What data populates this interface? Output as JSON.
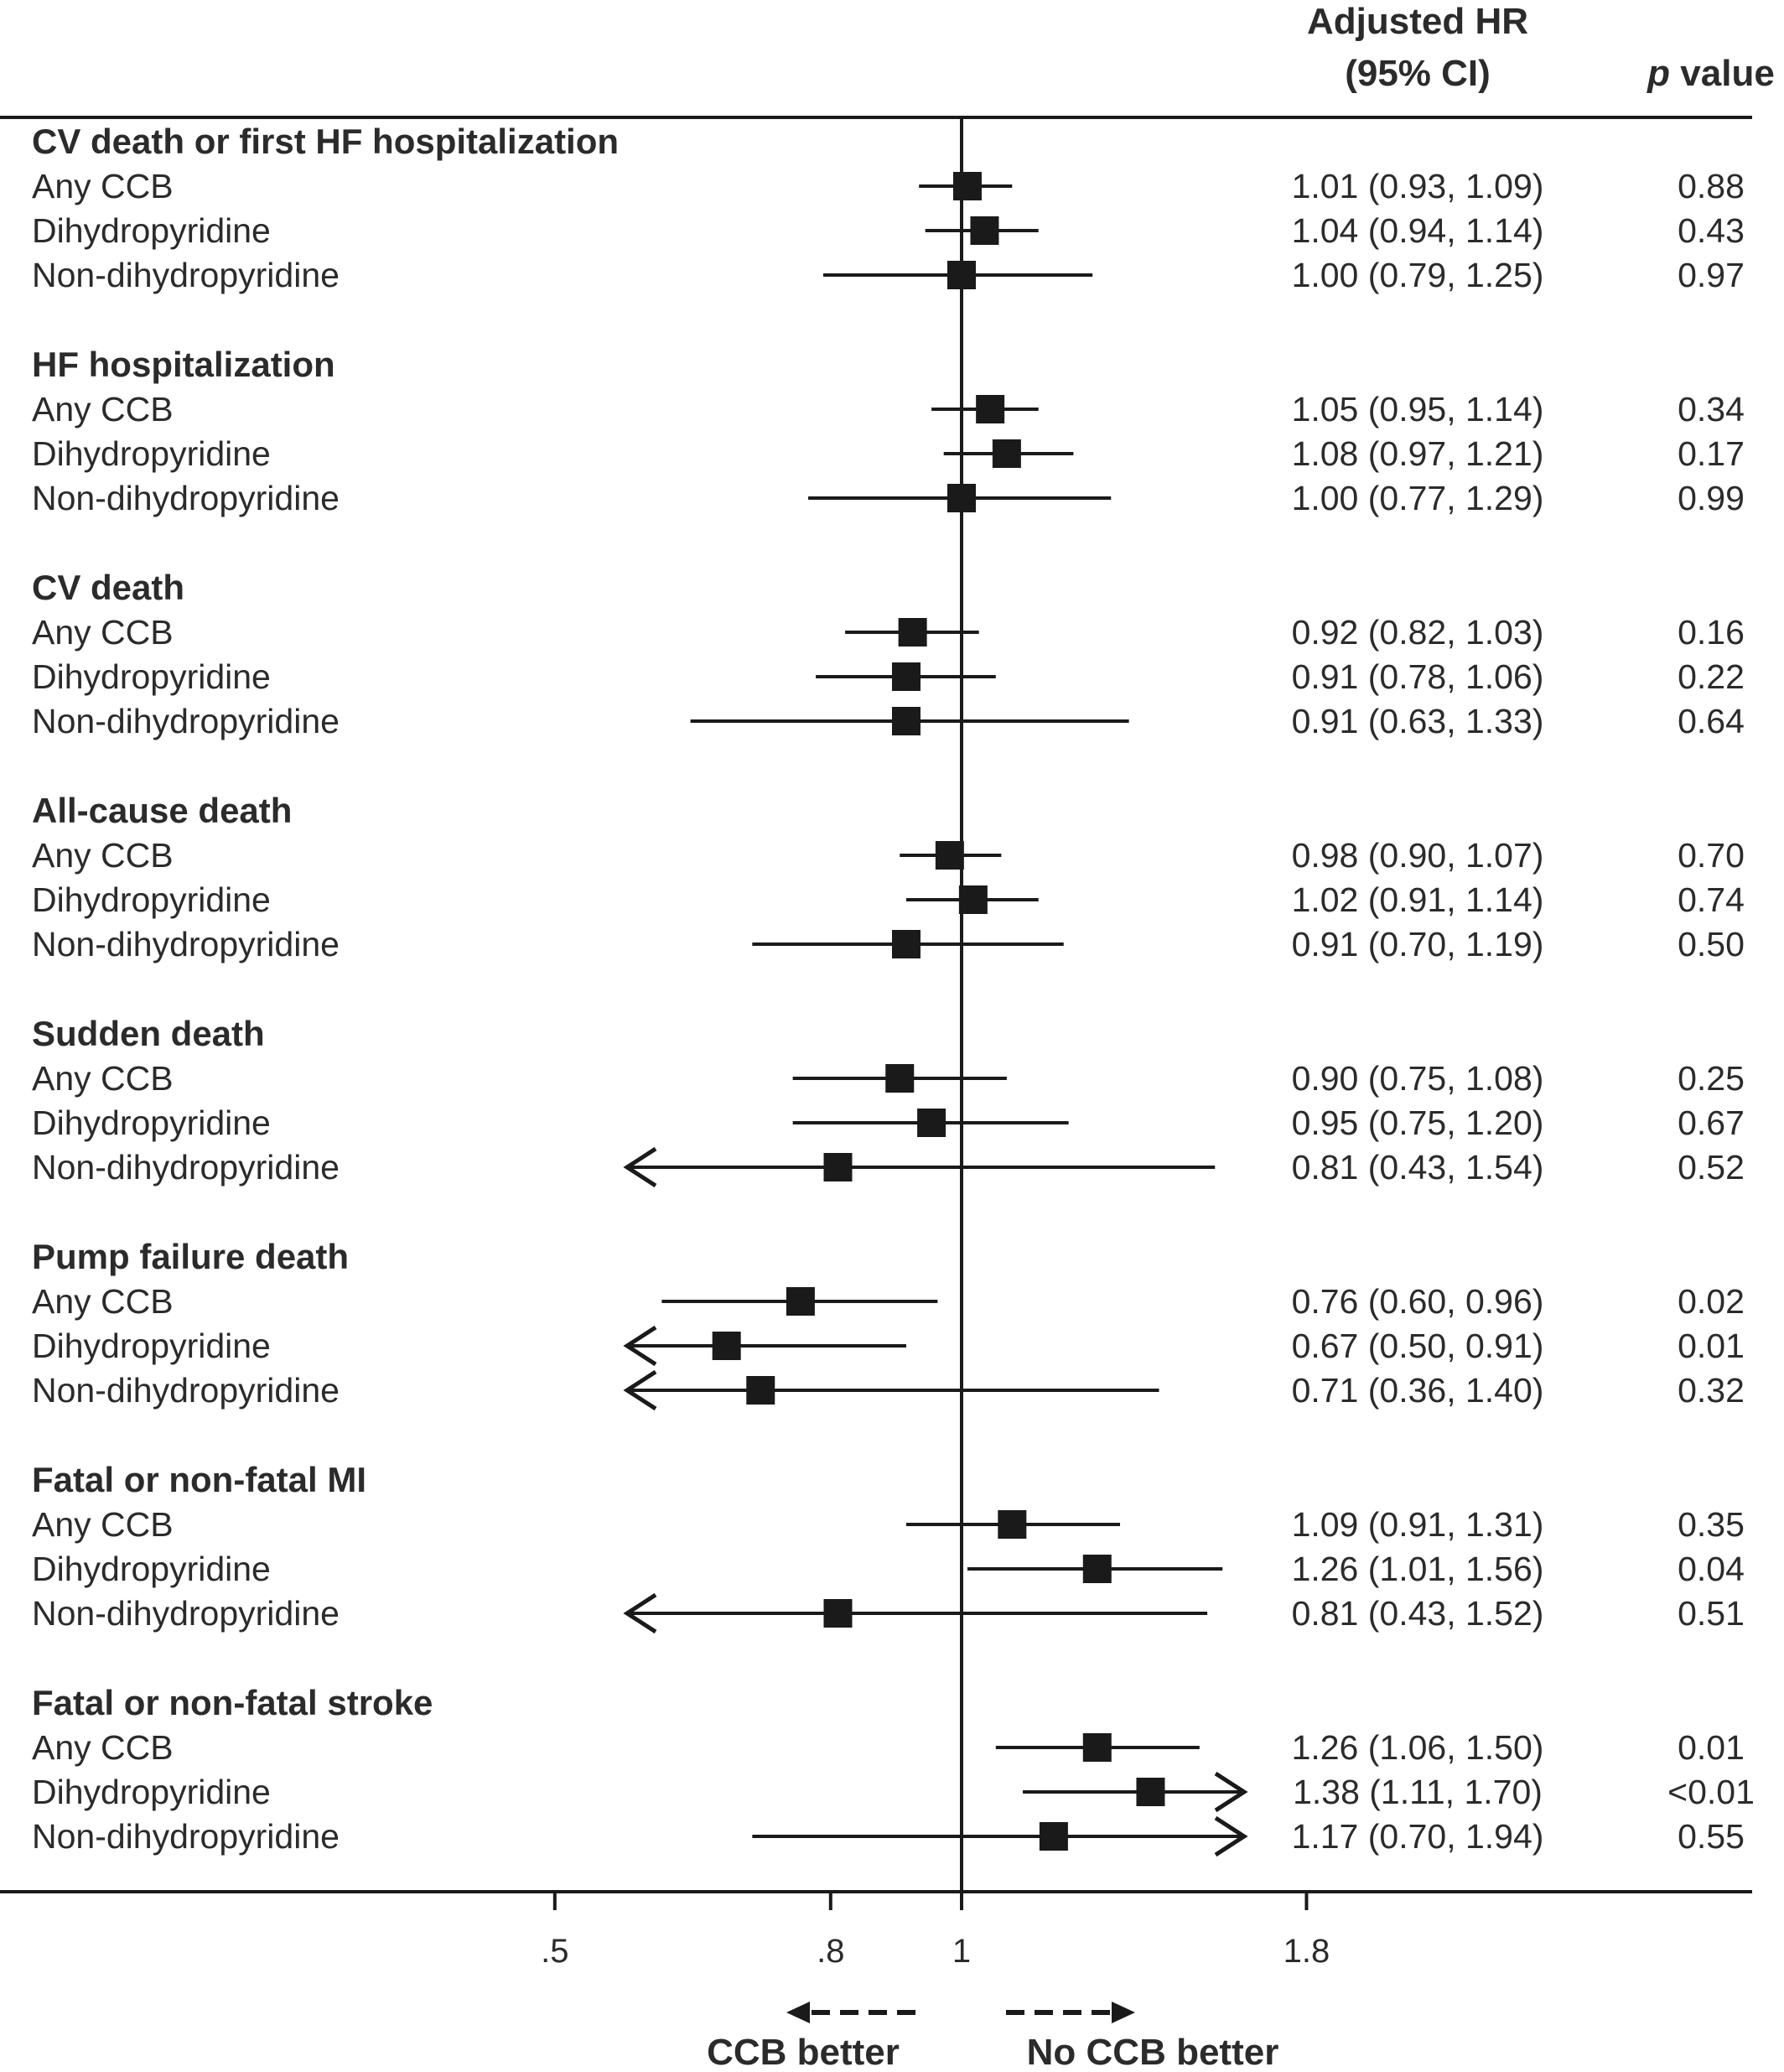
{
  "header": {
    "hr_line1": "Adjusted HR",
    "hr_line2": "(95% CI)",
    "p_italic": "p",
    "p_rest": " value"
  },
  "annotations": {
    "left": "CCB better",
    "right": "No CCB better"
  },
  "colors": {
    "ink": "#1a1a1a",
    "text": "#2b2b2b",
    "background": "#ffffff"
  },
  "chart_data": {
    "type": "forest",
    "title": "",
    "xlabel": "",
    "x_scale": "log",
    "reference_line": 1,
    "xlim": [
      0.5,
      1.8
    ],
    "xticks": [
      0.5,
      0.8,
      1,
      1.8
    ],
    "xtick_labels": [
      ".5",
      ".8",
      "1",
      "1.8"
    ],
    "groups": [
      {
        "name": "CV death or first HF hospitalization",
        "rows": [
          {
            "label": "Any CCB",
            "hr": 1.01,
            "lo": 0.93,
            "hi": 1.09,
            "ci_text": "1.01 (0.93, 1.09)",
            "p": "0.88"
          },
          {
            "label": "Dihydropyridine",
            "hr": 1.04,
            "lo": 0.94,
            "hi": 1.14,
            "ci_text": "1.04 (0.94, 1.14)",
            "p": "0.43"
          },
          {
            "label": "Non-dihydropyridine",
            "hr": 1.0,
            "lo": 0.79,
            "hi": 1.25,
            "ci_text": "1.00 (0.79, 1.25)",
            "p": "0.97"
          }
        ]
      },
      {
        "name": "HF hospitalization",
        "rows": [
          {
            "label": "Any CCB",
            "hr": 1.05,
            "lo": 0.95,
            "hi": 1.14,
            "ci_text": "1.05 (0.95, 1.14)",
            "p": "0.34"
          },
          {
            "label": "Dihydropyridine",
            "hr": 1.08,
            "lo": 0.97,
            "hi": 1.21,
            "ci_text": "1.08 (0.97, 1.21)",
            "p": "0.17"
          },
          {
            "label": "Non-dihydropyridine",
            "hr": 1.0,
            "lo": 0.77,
            "hi": 1.29,
            "ci_text": "1.00 (0.77, 1.29)",
            "p": "0.99"
          }
        ]
      },
      {
        "name": "CV death",
        "rows": [
          {
            "label": "Any CCB",
            "hr": 0.92,
            "lo": 0.82,
            "hi": 1.03,
            "ci_text": "0.92 (0.82, 1.03)",
            "p": "0.16"
          },
          {
            "label": "Dihydropyridine",
            "hr": 0.91,
            "lo": 0.78,
            "hi": 1.06,
            "ci_text": "0.91 (0.78, 1.06)",
            "p": "0.22"
          },
          {
            "label": "Non-dihydropyridine",
            "hr": 0.91,
            "lo": 0.63,
            "hi": 1.33,
            "ci_text": "0.91 (0.63, 1.33)",
            "p": "0.64"
          }
        ]
      },
      {
        "name": "All-cause death",
        "rows": [
          {
            "label": "Any CCB",
            "hr": 0.98,
            "lo": 0.9,
            "hi": 1.07,
            "ci_text": "0.98 (0.90, 1.07)",
            "p": "0.70"
          },
          {
            "label": "Dihydropyridine",
            "hr": 1.02,
            "lo": 0.91,
            "hi": 1.14,
            "ci_text": "1.02 (0.91, 1.14)",
            "p": "0.74"
          },
          {
            "label": "Non-dihydropyridine",
            "hr": 0.91,
            "lo": 0.7,
            "hi": 1.19,
            "ci_text": "0.91 (0.70, 1.19)",
            "p": "0.50"
          }
        ]
      },
      {
        "name": "Sudden death",
        "rows": [
          {
            "label": "Any CCB",
            "hr": 0.9,
            "lo": 0.75,
            "hi": 1.08,
            "ci_text": "0.90 (0.75, 1.08)",
            "p": "0.25"
          },
          {
            "label": "Dihydropyridine",
            "hr": 0.95,
            "lo": 0.75,
            "hi": 1.2,
            "ci_text": "0.95 (0.75, 1.20)",
            "p": "0.67"
          },
          {
            "label": "Non-dihydropyridine",
            "hr": 0.81,
            "lo": 0.43,
            "hi": 1.54,
            "ci_text": "0.81 (0.43, 1.54)",
            "p": "0.52"
          }
        ]
      },
      {
        "name": "Pump failure death",
        "rows": [
          {
            "label": "Any CCB",
            "hr": 0.76,
            "lo": 0.6,
            "hi": 0.96,
            "ci_text": "0.76 (0.60, 0.96)",
            "p": "0.02"
          },
          {
            "label": "Dihydropyridine",
            "hr": 0.67,
            "lo": 0.5,
            "hi": 0.91,
            "ci_text": "0.67 (0.50, 0.91)",
            "p": "0.01"
          },
          {
            "label": "Non-dihydropyridine",
            "hr": 0.71,
            "lo": 0.36,
            "hi": 1.4,
            "ci_text": "0.71 (0.36, 1.40)",
            "p": "0.32"
          }
        ]
      },
      {
        "name": "Fatal or non-fatal MI",
        "rows": [
          {
            "label": "Any CCB",
            "hr": 1.09,
            "lo": 0.91,
            "hi": 1.31,
            "ci_text": "1.09 (0.91, 1.31)",
            "p": "0.35"
          },
          {
            "label": "Dihydropyridine",
            "hr": 1.26,
            "lo": 1.01,
            "hi": 1.56,
            "ci_text": "1.26 (1.01, 1.56)",
            "p": "0.04"
          },
          {
            "label": "Non-dihydropyridine",
            "hr": 0.81,
            "lo": 0.43,
            "hi": 1.52,
            "ci_text": "0.81 (0.43, 1.52)",
            "p": "0.51"
          }
        ]
      },
      {
        "name": "Fatal or non-fatal stroke",
        "rows": [
          {
            "label": "Any CCB",
            "hr": 1.26,
            "lo": 1.06,
            "hi": 1.5,
            "ci_text": "1.26 (1.06, 1.50)",
            "p": "0.01"
          },
          {
            "label": "Dihydropyridine",
            "hr": 1.38,
            "lo": 1.11,
            "hi": 1.7,
            "ci_text": "1.38 (1.11, 1.70)",
            "p": "<0.01"
          },
          {
            "label": "Non-dihydropyridine",
            "hr": 1.17,
            "lo": 0.7,
            "hi": 1.94,
            "ci_text": "1.17 (0.70, 1.94)",
            "p": "0.55"
          }
        ]
      }
    ]
  }
}
